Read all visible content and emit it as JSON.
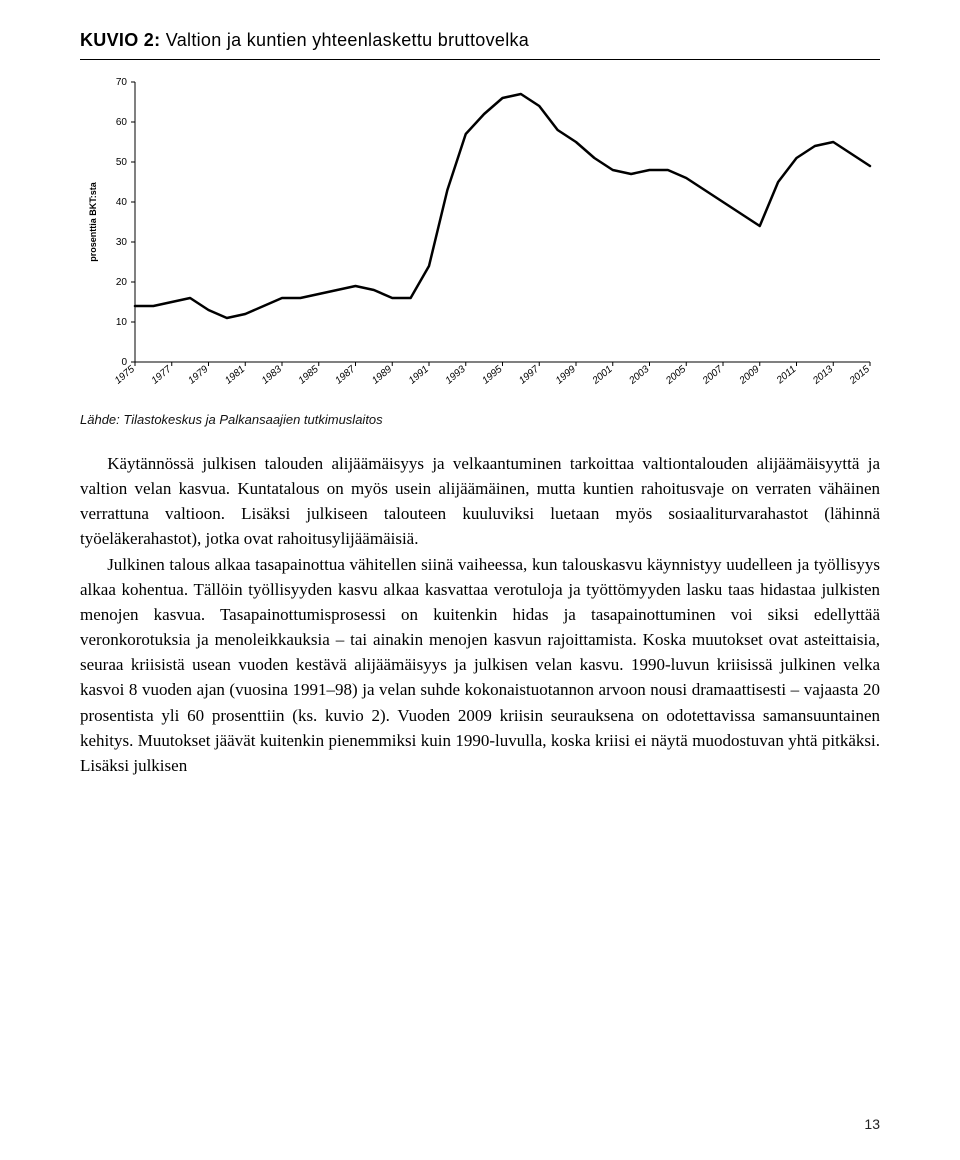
{
  "figure": {
    "label": "KUVIO 2:",
    "title": "Valtion ja kuntien yhteenlaskettu bruttovelka"
  },
  "chart": {
    "type": "line",
    "ylabel": "prosenttia BKT:sta",
    "label_fontsize": 9,
    "xlim": [
      1975,
      2015
    ],
    "ylim": [
      0,
      70
    ],
    "ytick_step": 10,
    "yticks": [
      0,
      10,
      20,
      30,
      40,
      50,
      60,
      70
    ],
    "xticks": [
      1975,
      1977,
      1979,
      1981,
      1983,
      1985,
      1987,
      1989,
      1991,
      1993,
      1995,
      1997,
      1999,
      2001,
      2003,
      2005,
      2007,
      2009,
      2011,
      2013,
      2015
    ],
    "line_color": "#000000",
    "line_width": 2.5,
    "axis_color": "#000000",
    "tick_fontsize": 10,
    "background_color": "#ffffff",
    "grid": false,
    "series": [
      {
        "x": 1975,
        "y": 14
      },
      {
        "x": 1976,
        "y": 14
      },
      {
        "x": 1977,
        "y": 15
      },
      {
        "x": 1978,
        "y": 16
      },
      {
        "x": 1979,
        "y": 13
      },
      {
        "x": 1980,
        "y": 11
      },
      {
        "x": 1981,
        "y": 12
      },
      {
        "x": 1982,
        "y": 14
      },
      {
        "x": 1983,
        "y": 16
      },
      {
        "x": 1984,
        "y": 16
      },
      {
        "x": 1985,
        "y": 17
      },
      {
        "x": 1986,
        "y": 18
      },
      {
        "x": 1987,
        "y": 19
      },
      {
        "x": 1988,
        "y": 18
      },
      {
        "x": 1989,
        "y": 16
      },
      {
        "x": 1990,
        "y": 16
      },
      {
        "x": 1991,
        "y": 24
      },
      {
        "x": 1992,
        "y": 43
      },
      {
        "x": 1993,
        "y": 57
      },
      {
        "x": 1994,
        "y": 62
      },
      {
        "x": 1995,
        "y": 66
      },
      {
        "x": 1996,
        "y": 67
      },
      {
        "x": 1997,
        "y": 64
      },
      {
        "x": 1998,
        "y": 58
      },
      {
        "x": 1999,
        "y": 55
      },
      {
        "x": 2000,
        "y": 51
      },
      {
        "x": 2001,
        "y": 48
      },
      {
        "x": 2002,
        "y": 47
      },
      {
        "x": 2003,
        "y": 48
      },
      {
        "x": 2004,
        "y": 48
      },
      {
        "x": 2005,
        "y": 46
      },
      {
        "x": 2006,
        "y": 43
      },
      {
        "x": 2007,
        "y": 40
      },
      {
        "x": 2008,
        "y": 37
      },
      {
        "x": 2009,
        "y": 34
      },
      {
        "x": 2010,
        "y": 45
      },
      {
        "x": 2011,
        "y": 51
      },
      {
        "x": 2012,
        "y": 54
      },
      {
        "x": 2013,
        "y": 55
      },
      {
        "x": 2014,
        "y": 52
      },
      {
        "x": 2015,
        "y": 49
      }
    ]
  },
  "source_label": "Lähde: Tilastokeskus ja Palkansaajien tutkimuslaitos",
  "body": {
    "p1": "Käytännössä julkisen talouden alijäämäisyys ja velkaantuminen tarkoittaa valtiontalouden alijäämäisyyttä ja valtion velan kasvua. Kuntatalous on myös usein alijäämäinen, mutta kuntien rahoitusvaje on verraten vähäinen verrattuna valtioon. Lisäksi julkiseen talouteen kuuluviksi luetaan myös sosiaaliturvarahastot (lähinnä työeläkerahastot), jotka ovat rahoitusylijäämäisiä.",
    "p2": "Julkinen talous alkaa tasapainottua vähitellen siinä vaiheessa, kun talouskasvu käynnistyy uudelleen ja työllisyys alkaa kohentua. Tällöin työllisyyden kasvu alkaa kasvattaa verotuloja ja työttömyyden lasku taas hidastaa julkisten menojen kasvua. Tasapainottumisprosessi on kuitenkin hidas ja tasapainottuminen voi siksi edellyttää veronkorotuksia ja menoleikkauksia – tai ainakin menojen kasvun rajoittamista. Koska muutokset ovat asteittaisia, seuraa kriisistä usean vuoden kestävä alijäämäisyys ja julkisen velan kasvu. 1990-luvun kriisissä julkinen velka kasvoi 8 vuoden ajan (vuosina 1991–98) ja velan suhde kokonaistuotannon arvoon nousi dramaattisesti – vajaasta 20 prosentista yli 60 prosenttiin (ks. kuvio 2). Vuoden 2009 kriisin seurauksena on odotettavissa samansuuntainen kehitys. Muutokset jäävät kuitenkin pienemmiksi kuin 1990-luvulla, koska kriisi ei näytä muodostuvan yhtä pitkäksi. Lisäksi julkisen"
  },
  "page_number": "13"
}
